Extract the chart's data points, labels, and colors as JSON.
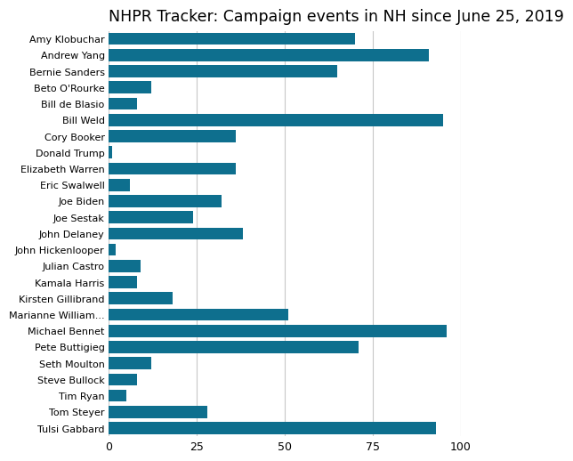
{
  "title": "NHPR Tracker: Campaign events in NH since June 25, 2019",
  "candidates": [
    "Amy Klobuchar",
    "Andrew Yang",
    "Bernie Sanders",
    "Beto O'Rourke",
    "Bill de Blasio",
    "Bill Weld",
    "Cory Booker",
    "Donald Trump",
    "Elizabeth Warren",
    "Eric Swalwell",
    "Joe Biden",
    "Joe Sestak",
    "John Delaney",
    "John Hickenlooper",
    "Julian Castro",
    "Kamala Harris",
    "Kirsten Gillibrand",
    "Marianne William...",
    "Michael Bennet",
    "Pete Buttigieg",
    "Seth Moulton",
    "Steve Bullock",
    "Tim Ryan",
    "Tom Steyer",
    "Tulsi Gabbard"
  ],
  "values": [
    70,
    91,
    65,
    12,
    8,
    95,
    36,
    1,
    36,
    6,
    32,
    24,
    38,
    2,
    9,
    8,
    18,
    51,
    96,
    71,
    12,
    8,
    5,
    28,
    93
  ],
  "bar_color": "#0e6f8e",
  "background_color": "#ffffff",
  "xlim": [
    0,
    100
  ],
  "xticks": [
    0,
    25,
    50,
    75,
    100
  ],
  "grid_color": "#c8c8c8",
  "title_fontsize": 12.5,
  "bar_height": 0.75,
  "label_fontsize": 8.0,
  "tick_fontsize": 9.0
}
